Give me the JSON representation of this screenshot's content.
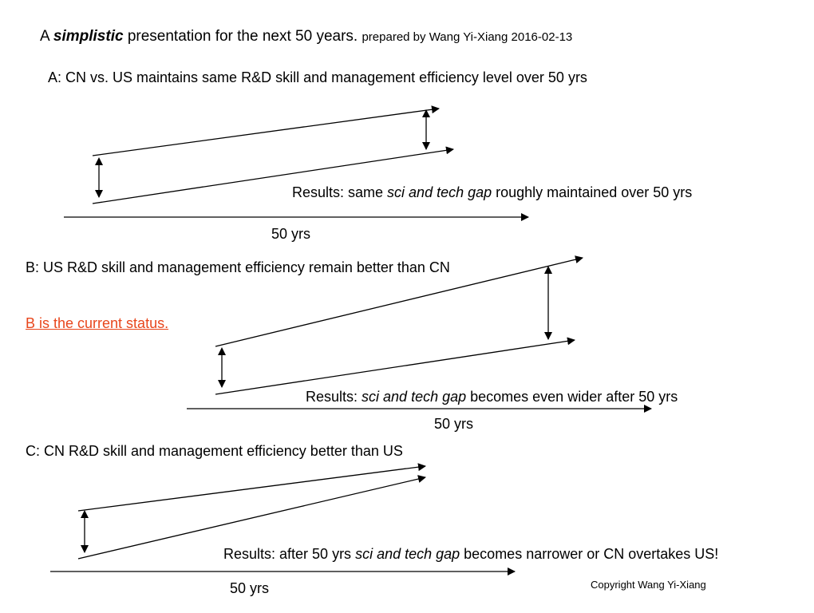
{
  "header": {
    "title_prefix": "A ",
    "title_emphasis": "simplistic",
    "title_rest": " presentation for the next 50 years.",
    "byline": "prepared by Wang Yi-Xiang 2016-02-13"
  },
  "scenarios": [
    {
      "heading": "A: CN vs. US maintains same R&D skill and management efficiency level over 50 yrs",
      "result_prefix": "Results: same ",
      "result_emphasis": "sci and tech gap",
      "result_suffix": " roughly maintained over 50 yrs",
      "axis_label": "50 yrs"
    },
    {
      "heading": "B: US R&D skill and management efficiency remain   better than CN",
      "status_note": "B is the current status.",
      "result_prefix": "Results: ",
      "result_emphasis": "sci and tech gap",
      "result_suffix": " becomes even wider after 50 yrs",
      "axis_label": "50 yrs"
    },
    {
      "heading": "C: CN R&D skill and management efficiency better than US",
      "result_prefix": "Results: after 50 yrs ",
      "result_emphasis": "sci and tech gap",
      "result_suffix": " becomes narrower or CN overtakes US!",
      "axis_label": "50 yrs"
    }
  ],
  "footer": {
    "copyright": "Copyright  Wang Yi-Xiang"
  },
  "colors": {
    "text": "#000000",
    "status_note": "#e8461c",
    "line": "#000000",
    "background": "#ffffff"
  }
}
